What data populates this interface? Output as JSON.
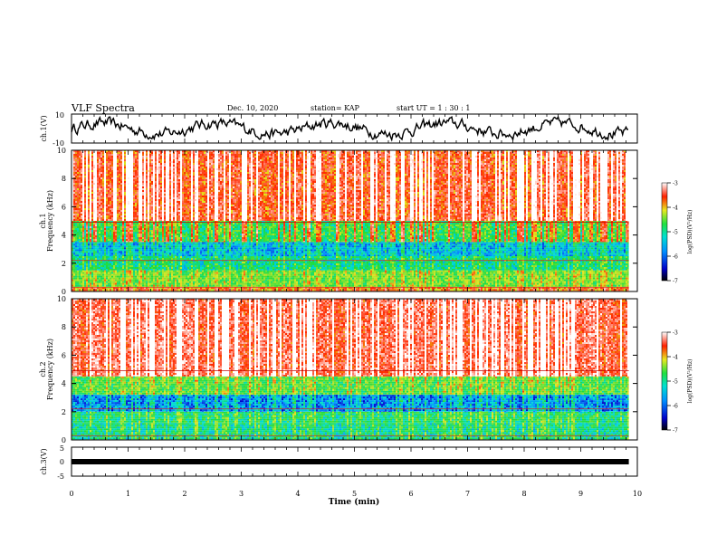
{
  "header": {
    "title": "VLF Spectra",
    "date": "Dec. 10, 2020",
    "station": "station= KAP",
    "start": "start  UT =   1 : 30 : 1"
  },
  "chart_data": [
    {
      "type": "line",
      "name": "ch1-waveform",
      "ylabel": "ch.1(V)",
      "ylim": [
        -10,
        10
      ],
      "yticklabels": [
        "10",
        "-10"
      ],
      "x_range_min": [
        0,
        9.85
      ],
      "approx_mean_V": 0,
      "approx_range_V": [
        -8,
        8
      ]
    },
    {
      "type": "heatmap",
      "name": "ch1-spectrogram",
      "ylabel": "ch.1\nFrequency  (kHz)",
      "ylim": [
        0,
        10
      ],
      "yticks": [
        0,
        2,
        4,
        6,
        8,
        10
      ],
      "x_range_min": [
        0,
        9.85
      ],
      "colorbar": {
        "label": "log(PSD)(V²/Hz)",
        "ticks": [
          -3,
          -4,
          -5,
          -6,
          -7
        ],
        "range": [
          -7,
          -3
        ]
      },
      "bands_kHz": [
        {
          "from": 0,
          "to": 0.3,
          "level": -4.2
        },
        {
          "from": 0.3,
          "to": 1.5,
          "level": -4.9
        },
        {
          "from": 1.5,
          "to": 2.5,
          "level": -5.4
        },
        {
          "from": 2.5,
          "to": 3.5,
          "level": -5.8
        },
        {
          "from": 3.5,
          "to": 5,
          "level": -5.1
        },
        {
          "from": 5,
          "to": 10,
          "level": -3.8
        }
      ]
    },
    {
      "type": "heatmap",
      "name": "ch2-spectrogram",
      "ylabel": "ch.2\nFrequency  (kHz)",
      "ylim": [
        0,
        10
      ],
      "yticks": [
        0,
        2,
        4,
        6,
        8,
        10
      ],
      "x_range_min": [
        0,
        9.85
      ],
      "colorbar": {
        "label": "log(PSD)(V²/Hz)",
        "ticks": [
          -3,
          -4,
          -5,
          -6,
          -7
        ],
        "range": [
          -7,
          -3
        ]
      },
      "bands_kHz": [
        {
          "from": 0,
          "to": 1.2,
          "level": -5.4
        },
        {
          "from": 1.2,
          "to": 2,
          "level": -5.3
        },
        {
          "from": 2,
          "to": 3.2,
          "level": -6.0
        },
        {
          "from": 3.2,
          "to": 4.5,
          "level": -5.0
        },
        {
          "from": 4.5,
          "to": 10,
          "level": -3.6
        }
      ]
    },
    {
      "type": "line",
      "name": "ch3-waveform",
      "ylabel": "ch.3(V)",
      "ylim": [
        -5,
        5
      ],
      "yticklabels": [
        "5",
        "0",
        "-5"
      ],
      "x_range_min": [
        0,
        9.85
      ],
      "approx_level_V": 0
    }
  ],
  "xaxis": {
    "label": "Time  (min)",
    "range": [
      0,
      10
    ],
    "ticks": [
      "0",
      "1",
      "2",
      "3",
      "4",
      "5",
      "6",
      "7",
      "8",
      "9",
      "10"
    ]
  }
}
